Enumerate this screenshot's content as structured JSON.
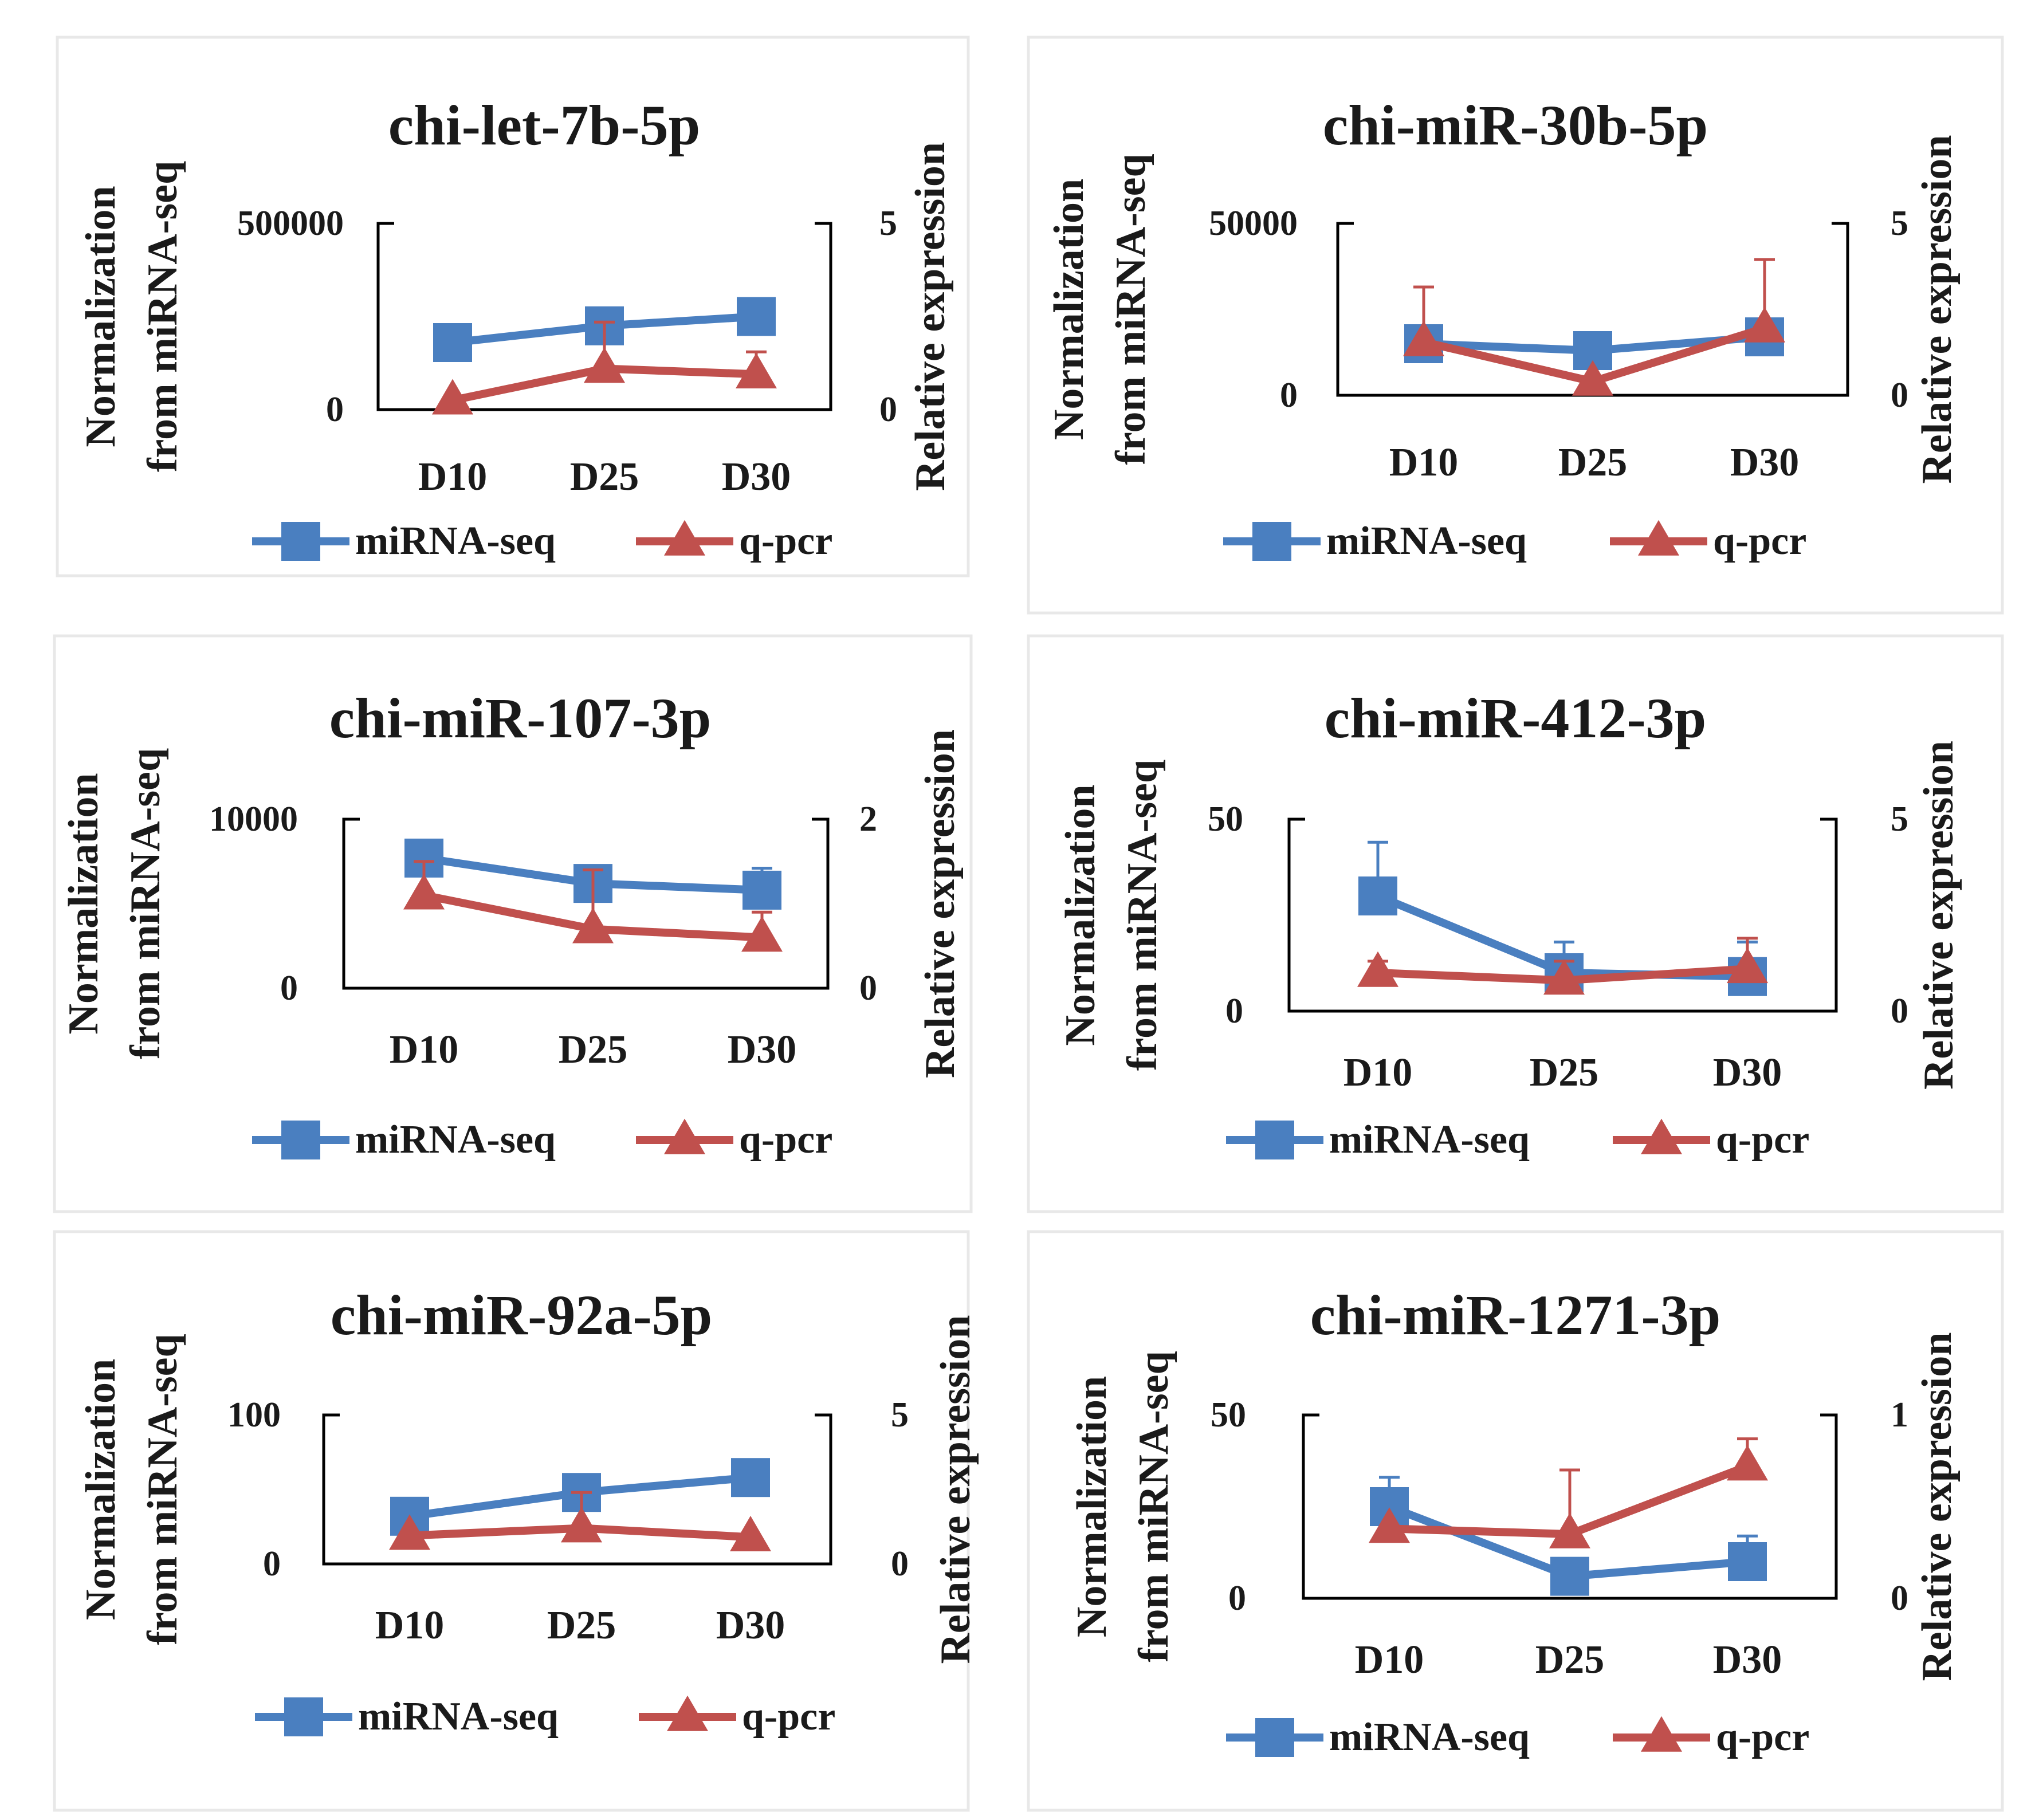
{
  "colors": {
    "mirna_seq": "#4a7fc0",
    "qpcr": "#c0504d",
    "axis": "#000000",
    "panel_border": "#e8e8e8"
  },
  "chart_data": [
    {
      "type": "line",
      "title": "chi-let-7b-5p",
      "categories": [
        "D10",
        "D25",
        "D30"
      ],
      "ylabel": "Normalization from miRNA-seq",
      "y2label": "Relative expression",
      "ylim": [
        0,
        500000
      ],
      "yticks": [
        "0",
        "500000"
      ],
      "y2lim": [
        0,
        5
      ],
      "y2ticks": [
        "0",
        "5"
      ],
      "series": [
        {
          "name": "miRNA-seq",
          "axis": "left",
          "marker": "square",
          "values": [
            180000,
            225000,
            250000
          ],
          "errors": [
            0,
            0,
            0
          ]
        },
        {
          "name": "q-pcr",
          "axis": "right",
          "marker": "triangle",
          "values": [
            0.25,
            1.1,
            0.95
          ],
          "errors": [
            0,
            1.25,
            0.6
          ]
        }
      ]
    },
    {
      "type": "line",
      "title": "chi-miR-30b-5p",
      "categories": [
        "D10",
        "D25",
        "D30"
      ],
      "ylabel": "Normalization from miRNA-seq",
      "y2label": "Relative expression",
      "ylim": [
        0,
        50000
      ],
      "yticks": [
        "0",
        "50000"
      ],
      "y2lim": [
        0,
        5
      ],
      "y2ticks": [
        "0",
        "5"
      ],
      "series": [
        {
          "name": "miRNA-seq",
          "axis": "left",
          "marker": "square",
          "values": [
            15000,
            13000,
            17000
          ],
          "errors": [
            0,
            0,
            0
          ]
        },
        {
          "name": "q-pcr",
          "axis": "right",
          "marker": "triangle",
          "values": [
            1.55,
            0.4,
            1.95
          ],
          "errors": [
            1.6,
            0,
            2.0
          ]
        }
      ]
    },
    {
      "type": "line",
      "title": "chi-miR-107-3p",
      "categories": [
        "D10",
        "D25",
        "D30"
      ],
      "ylabel": "Normalization from miRNA-seq",
      "y2label": "Relative expression",
      "ylim": [
        0,
        10000
      ],
      "yticks": [
        "0",
        "10000"
      ],
      "y2lim": [
        0,
        2
      ],
      "y2ticks": [
        "0",
        "2"
      ],
      "series": [
        {
          "name": "miRNA-seq",
          "axis": "left",
          "marker": "square",
          "values": [
            7700,
            6200,
            5800
          ],
          "errors": [
            0,
            0,
            1300
          ]
        },
        {
          "name": "q-pcr",
          "axis": "right",
          "marker": "triangle",
          "values": [
            1.1,
            0.7,
            0.6
          ],
          "errors": [
            0.4,
            0.7,
            0.3
          ]
        }
      ]
    },
    {
      "type": "line",
      "title": "chi-miR-412-3p",
      "categories": [
        "D10",
        "D25",
        "D30"
      ],
      "ylabel": "Normalization from miRNA-seq",
      "y2label": "Relative expression",
      "ylim": [
        0,
        50
      ],
      "yticks": [
        "0",
        "50"
      ],
      "y2lim": [
        0,
        5
      ],
      "y2ticks": [
        "0",
        "5"
      ],
      "series": [
        {
          "name": "miRNA-seq",
          "axis": "left",
          "marker": "square",
          "values": [
            30,
            10,
            9
          ],
          "errors": [
            14,
            8,
            9
          ]
        },
        {
          "name": "q-pcr",
          "axis": "right",
          "marker": "triangle",
          "values": [
            1.0,
            0.8,
            1.1
          ],
          "errors": [
            0.3,
            0.5,
            0.8
          ]
        }
      ]
    },
    {
      "type": "line",
      "title": "chi-miR-92a-5p",
      "categories": [
        "D10",
        "D25",
        "D30"
      ],
      "ylabel": "Normalization from miRNA-seq",
      "y2label": "Relative expression",
      "ylim": [
        0,
        100
      ],
      "yticks": [
        "0",
        "100"
      ],
      "y2lim": [
        0,
        5
      ],
      "y2ticks": [
        "0",
        "5"
      ],
      "series": [
        {
          "name": "miRNA-seq",
          "axis": "left",
          "marker": "square",
          "values": [
            32,
            48,
            58
          ],
          "errors": [
            0,
            0,
            8
          ]
        },
        {
          "name": "q-pcr",
          "axis": "right",
          "marker": "triangle",
          "values": [
            0.95,
            1.2,
            0.9
          ],
          "errors": [
            0,
            1.2,
            0
          ]
        }
      ]
    },
    {
      "type": "line",
      "title": "chi-miR-1271-3p",
      "categories": [
        "D10",
        "D25",
        "D30"
      ],
      "ylabel": "Normalization from miRNA-seq",
      "y2label": "Relative expression",
      "ylim": [
        0,
        50
      ],
      "yticks": [
        "0",
        "50"
      ],
      "y2lim": [
        0,
        1
      ],
      "y2ticks": [
        "0",
        "1"
      ],
      "series": [
        {
          "name": "miRNA-seq",
          "axis": "left",
          "marker": "square",
          "values": [
            25,
            6,
            10
          ],
          "errors": [
            8,
            0,
            7
          ]
        },
        {
          "name": "q-pcr",
          "axis": "right",
          "marker": "triangle",
          "values": [
            0.38,
            0.35,
            0.72
          ],
          "errors": [
            0,
            0.35,
            0.15
          ]
        }
      ]
    }
  ]
}
